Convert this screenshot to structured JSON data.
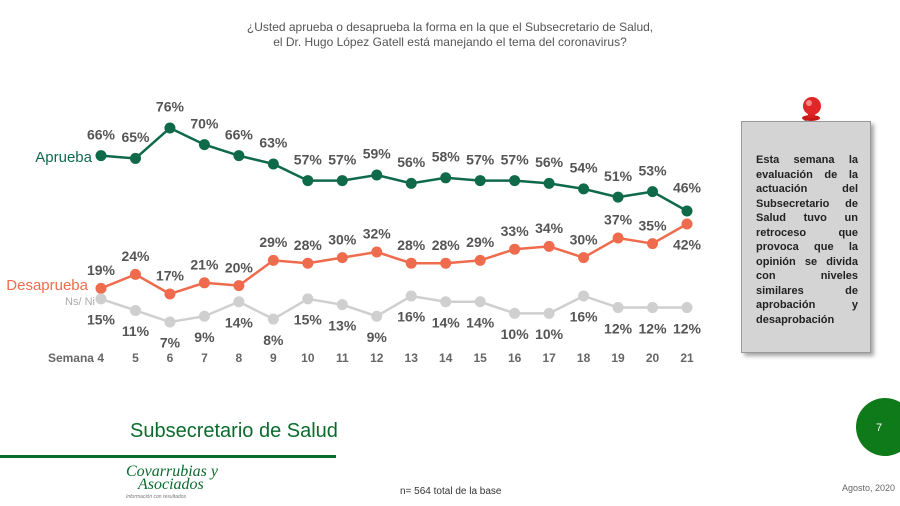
{
  "question": {
    "line1": "¿Usted aprueba o desaprueba la forma en la que el Subsecretario de Salud,",
    "line2": "el Dr. Hugo López Gatell está manejando el tema del coronavirus?"
  },
  "chart_data": {
    "type": "line",
    "categories": [
      "Semana 4",
      "5",
      "6",
      "7",
      "8",
      "9",
      "10",
      "11",
      "12",
      "13",
      "14",
      "15",
      "16",
      "17",
      "18",
      "19",
      "20",
      "21"
    ],
    "series": [
      {
        "name": "Aprueba",
        "color": "#0f6a4a",
        "values": [
          66,
          65,
          76,
          70,
          66,
          63,
          57,
          57,
          59,
          56,
          58,
          57,
          57,
          56,
          54,
          51,
          53,
          46
        ]
      },
      {
        "name": "Desaprueba",
        "color": "#ee6c4d",
        "values": [
          19,
          24,
          17,
          21,
          20,
          29,
          28,
          30,
          32,
          28,
          28,
          29,
          33,
          34,
          30,
          37,
          35,
          42
        ]
      },
      {
        "name": "Ns/ Ni",
        "color": "#cfcfcf",
        "values": [
          15,
          11,
          7,
          9,
          14,
          8,
          15,
          13,
          9,
          16,
          14,
          14,
          10,
          10,
          16,
          12,
          12,
          12
        ]
      }
    ],
    "unit": "%",
    "ylim": [
      0,
      80
    ],
    "legend_placement": "left"
  },
  "note": {
    "text": "Esta semana la evaluación de la actuación del Subsecretario de Salud tuvo un retroceso que provoca que la opinión se divida con niveles similares de aprobación y desaprobación",
    "icon": "pushpin-icon"
  },
  "section_title": "Subsecretario de Salud",
  "page_number": "7",
  "logo": {
    "line1": "Covarrubias y",
    "line2": "Asociados",
    "tagline": "Información con resultados"
  },
  "base_note": "n= 564 total de la base",
  "date_note": "Agosto, 2020",
  "colors": {
    "brand_green": "#0b6b2d",
    "page_badge": "#0f7a1a"
  }
}
